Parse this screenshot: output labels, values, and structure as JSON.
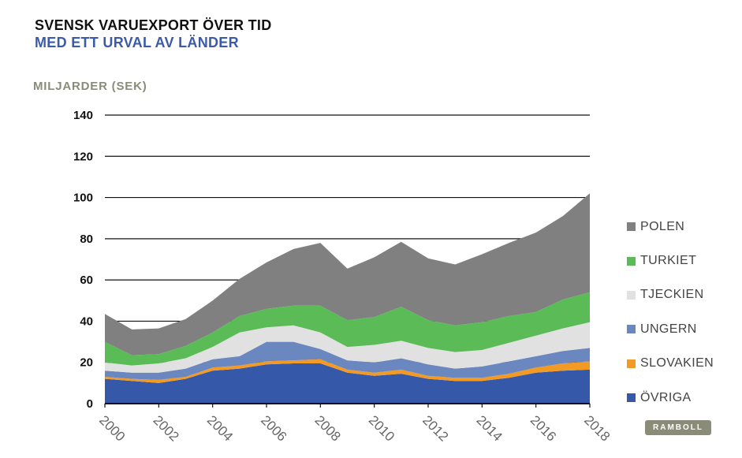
{
  "header": {
    "title": "SVENSK VARUEXPORT  ÖVER TID",
    "subtitle": "MED ETT URVAL AV LÄNDER",
    "subtitle_color": "#3B5AA8"
  },
  "logo": {
    "text": "RAMBOLL",
    "color": "#8A8C78"
  },
  "chart_data": {
    "type": "area",
    "stacked": true,
    "ylabel": "MILJARDER (SEK)",
    "ylabel_color": "#8A8C78",
    "ylim": [
      0,
      140
    ],
    "yticks": [
      0,
      20,
      40,
      60,
      80,
      100,
      120,
      140
    ],
    "x": [
      2000,
      2001,
      2002,
      2003,
      2004,
      2005,
      2006,
      2007,
      2008,
      2009,
      2010,
      2011,
      2012,
      2013,
      2014,
      2015,
      2016,
      2017,
      2018
    ],
    "xticks": [
      "2000",
      "2002",
      "2004",
      "2006",
      "2008",
      "2010",
      "2012",
      "2014",
      "2016",
      "2018"
    ],
    "grid": true,
    "legend_position": "right",
    "series": [
      {
        "name": "ÖVRIGA",
        "color": "#3558A8",
        "values": [
          12,
          11,
          10,
          12,
          16,
          17,
          19,
          19.5,
          19.5,
          15,
          13.5,
          14.5,
          12,
          11,
          11,
          12.5,
          15,
          16,
          16.5
        ]
      },
      {
        "name": "SLOVAKIEN",
        "color": "#F29A24",
        "values": [
          1,
          1,
          1.5,
          1,
          1.5,
          1.5,
          1.5,
          1.5,
          2,
          1.5,
          1.5,
          2,
          1.5,
          1.5,
          1.5,
          2,
          2.5,
          3.5,
          4
        ]
      },
      {
        "name": "UNGERN",
        "color": "#6B87C0",
        "values": [
          3,
          3,
          3.5,
          4,
          4,
          4.5,
          9.5,
          9,
          5,
          4.5,
          5,
          5.5,
          5.5,
          4.5,
          5.5,
          6,
          5.5,
          6,
          6.5
        ]
      },
      {
        "name": "TJECKIEN",
        "color": "#E1E1E1",
        "values": [
          4,
          3.5,
          4.5,
          5,
          6,
          11.5,
          7,
          8,
          8,
          6.5,
          8.5,
          8.5,
          8,
          8,
          8,
          9,
          10,
          11,
          12.5
        ]
      },
      {
        "name": "TURKIET",
        "color": "#5BBC57",
        "values": [
          10,
          5,
          4.5,
          6,
          7,
          8,
          9,
          9.5,
          13,
          13,
          13.5,
          16.5,
          13.5,
          13,
          13.5,
          13,
          11.5,
          14,
          14.5
        ]
      },
      {
        "name": "POLEN",
        "color": "#808080",
        "values": [
          13.5,
          12.5,
          12.5,
          13,
          15.5,
          18,
          22.5,
          27.5,
          30.5,
          25,
          29,
          31.5,
          30,
          29.5,
          33,
          35.5,
          38.5,
          40.5,
          48
        ]
      }
    ]
  }
}
